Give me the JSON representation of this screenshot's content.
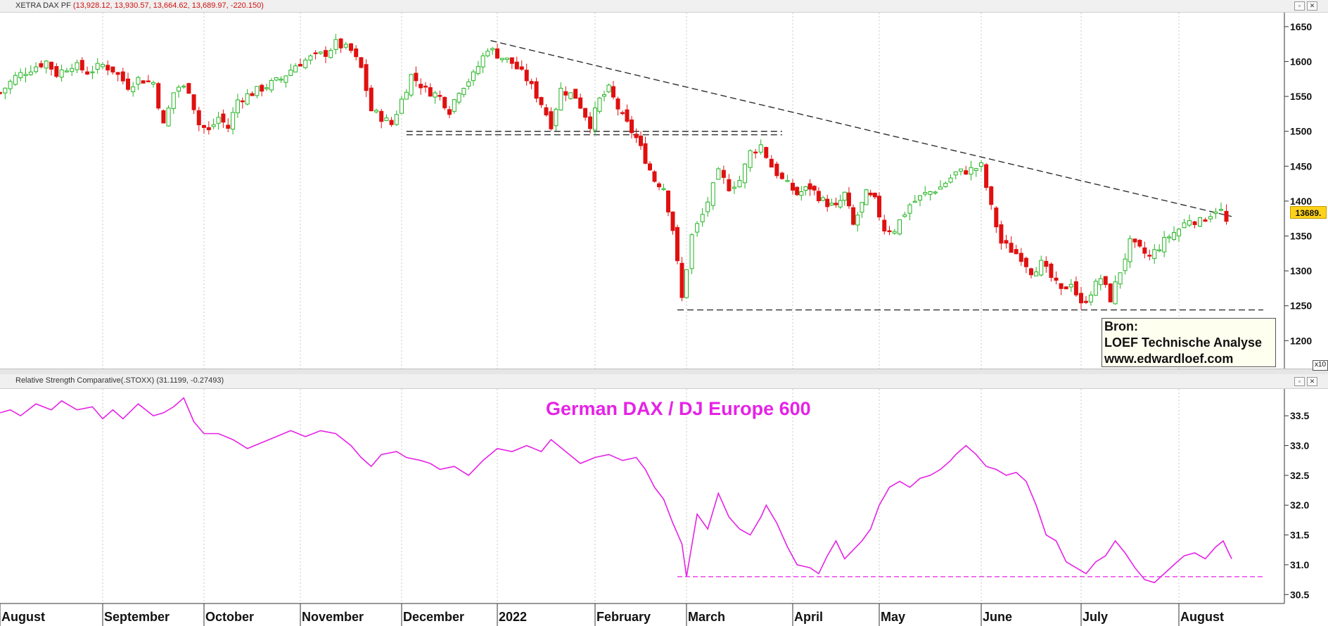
{
  "top_pane": {
    "title_name": "XETRA DAX PF",
    "title_values": "(13,928.12, 13,930.57, 13,664.62, 13,689.97, -220.150)",
    "last_price_label": "13689.",
    "scale_marker": "x10"
  },
  "bottom_pane": {
    "title_name": "Relative Strength Comparative(.STOXX)",
    "title_values": "(31.1199, -0.27493)",
    "chart_title": "German DAX / DJ Europe 600"
  },
  "source_box": {
    "line1": "Bron:",
    "line2": "LOEF Technische Analyse",
    "line3": "www.edwardloef.com"
  },
  "window_buttons": {
    "restore": "▫",
    "close": "✕"
  },
  "colors": {
    "up_candle": "#22b422",
    "down_candle": "#e01010",
    "rs_line": "#e622e6",
    "grid": "#c8c8c8",
    "last_price_bg": "#ffd21a"
  },
  "chart_data": [
    {
      "type": "candlestick",
      "title": "XETRA DAX PF",
      "x_months": [
        "August",
        "September",
        "October",
        "November",
        "December",
        "2022",
        "February",
        "March",
        "April",
        "May",
        "June",
        "July",
        "August"
      ],
      "y_ticks": [
        1200,
        1250,
        1300,
        1350,
        1400,
        1450,
        1500,
        1550,
        1600,
        1650
      ],
      "y_multiplier": "x10",
      "ylim": [
        1160,
        1670
      ],
      "grid": true,
      "trend_lines": [
        {
          "style": "dashed",
          "from": {
            "month_index": 4.05,
            "value": 1500
          },
          "to": {
            "month_index": 7.9,
            "value": 1500
          }
        },
        {
          "style": "dashed",
          "from": {
            "month_index": 4.05,
            "value": 1495
          },
          "to": {
            "month_index": 7.9,
            "value": 1495
          }
        },
        {
          "style": "dashed",
          "from": {
            "month_index": 4.93,
            "value": 1630
          },
          "to": {
            "month_index": 12.5,
            "value": 1378
          }
        },
        {
          "style": "dashed",
          "from": {
            "month_index": 6.9,
            "value": 1244
          },
          "to": {
            "month_index": 12.8,
            "value": 1244
          }
        }
      ],
      "close_path": [
        [
          0,
          1555
        ],
        [
          0.15,
          1578
        ],
        [
          0.3,
          1590
        ],
        [
          0.45,
          1600
        ],
        [
          0.55,
          1582
        ],
        [
          0.7,
          1596
        ],
        [
          0.85,
          1585
        ],
        [
          1.0,
          1595
        ],
        [
          1.1,
          1588
        ],
        [
          1.25,
          1565
        ],
        [
          1.35,
          1575
        ],
        [
          1.5,
          1570
        ],
        [
          1.6,
          1508
        ],
        [
          1.72,
          1565
        ],
        [
          1.85,
          1560
        ],
        [
          1.95,
          1510
        ],
        [
          2.05,
          1500
        ],
        [
          2.15,
          1520
        ],
        [
          2.25,
          1505
        ],
        [
          2.35,
          1545
        ],
        [
          2.5,
          1555
        ],
        [
          2.65,
          1565
        ],
        [
          2.8,
          1575
        ],
        [
          2.95,
          1595
        ],
        [
          3.1,
          1605
        ],
        [
          3.25,
          1612
        ],
        [
          3.35,
          1626
        ],
        [
          3.5,
          1615
        ],
        [
          3.6,
          1590
        ],
        [
          3.7,
          1530
        ],
        [
          3.8,
          1520
        ],
        [
          3.9,
          1510
        ],
        [
          4.0,
          1545
        ],
        [
          4.1,
          1580
        ],
        [
          4.25,
          1560
        ],
        [
          4.4,
          1550
        ],
        [
          4.5,
          1530
        ],
        [
          4.6,
          1560
        ],
        [
          4.75,
          1580
        ],
        [
          4.9,
          1620
        ],
        [
          5.0,
          1610
        ],
        [
          5.15,
          1598
        ],
        [
          5.3,
          1575
        ],
        [
          5.45,
          1540
        ],
        [
          5.55,
          1510
        ],
        [
          5.65,
          1560
        ],
        [
          5.8,
          1550
        ],
        [
          5.95,
          1510
        ],
        [
          6.05,
          1545
        ],
        [
          6.15,
          1560
        ],
        [
          6.3,
          1520
        ],
        [
          6.45,
          1490
        ],
        [
          6.55,
          1460
        ],
        [
          6.65,
          1430
        ],
        [
          6.75,
          1420
        ],
        [
          6.85,
          1360
        ],
        [
          6.95,
          1260
        ],
        [
          7.05,
          1350
        ],
        [
          7.15,
          1380
        ],
        [
          7.3,
          1440
        ],
        [
          7.4,
          1420
        ],
        [
          7.5,
          1430
        ],
        [
          7.6,
          1470
        ],
        [
          7.7,
          1480
        ],
        [
          7.8,
          1450
        ],
        [
          7.9,
          1430
        ],
        [
          8.05,
          1410
        ],
        [
          8.2,
          1420
        ],
        [
          8.35,
          1400
        ],
        [
          8.5,
          1390
        ],
        [
          8.6,
          1410
        ],
        [
          8.7,
          1365
        ],
        [
          8.85,
          1410
        ],
        [
          8.95,
          1400
        ],
        [
          9.05,
          1360
        ],
        [
          9.15,
          1360
        ],
        [
          9.3,
          1395
        ],
        [
          9.45,
          1410
        ],
        [
          9.6,
          1420
        ],
        [
          9.75,
          1440
        ],
        [
          9.9,
          1445
        ],
        [
          10.0,
          1450
        ],
        [
          10.1,
          1390
        ],
        [
          10.2,
          1340
        ],
        [
          10.3,
          1330
        ],
        [
          10.4,
          1320
        ],
        [
          10.5,
          1300
        ],
        [
          10.6,
          1310
        ],
        [
          10.7,
          1290
        ],
        [
          10.8,
          1270
        ],
        [
          10.9,
          1285
        ],
        [
          11.0,
          1250
        ],
        [
          11.1,
          1270
        ],
        [
          11.2,
          1290
        ],
        [
          11.3,
          1260
        ],
        [
          11.4,
          1300
        ],
        [
          11.5,
          1340
        ],
        [
          11.6,
          1330
        ],
        [
          11.7,
          1320
        ],
        [
          11.8,
          1335
        ],
        [
          11.9,
          1350
        ],
        [
          12.0,
          1360
        ],
        [
          12.1,
          1375
        ],
        [
          12.2,
          1370
        ],
        [
          12.3,
          1382
        ],
        [
          12.38,
          1392
        ],
        [
          12.45,
          1369
        ]
      ]
    },
    {
      "type": "line",
      "title": "German DAX / DJ Europe 600",
      "series": [
        {
          "name": "Relative Strength Comparative(.STOXX)"
        }
      ],
      "y_ticks": [
        30.5,
        31.0,
        31.5,
        32.0,
        32.5,
        33.0,
        33.5
      ],
      "ylim": [
        30.35,
        33.95
      ],
      "grid": true,
      "support_line": {
        "style": "dashed",
        "value": 30.8,
        "from_month_index": 6.9,
        "to_month_index": 12.8
      },
      "points": [
        [
          0,
          33.55
        ],
        [
          0.1,
          33.6
        ],
        [
          0.2,
          33.5
        ],
        [
          0.35,
          33.7
        ],
        [
          0.5,
          33.6
        ],
        [
          0.6,
          33.75
        ],
        [
          0.75,
          33.6
        ],
        [
          0.9,
          33.65
        ],
        [
          1.0,
          33.45
        ],
        [
          1.1,
          33.6
        ],
        [
          1.2,
          33.45
        ],
        [
          1.35,
          33.7
        ],
        [
          1.5,
          33.5
        ],
        [
          1.6,
          33.55
        ],
        [
          1.7,
          33.65
        ],
        [
          1.8,
          33.8
        ],
        [
          1.9,
          33.4
        ],
        [
          2.0,
          33.2
        ],
        [
          2.15,
          33.2
        ],
        [
          2.3,
          33.1
        ],
        [
          2.45,
          32.95
        ],
        [
          2.6,
          33.05
        ],
        [
          2.75,
          33.15
        ],
        [
          2.9,
          33.25
        ],
        [
          3.05,
          33.15
        ],
        [
          3.2,
          33.25
        ],
        [
          3.35,
          33.2
        ],
        [
          3.5,
          33.0
        ],
        [
          3.6,
          32.8
        ],
        [
          3.7,
          32.65
        ],
        [
          3.8,
          32.85
        ],
        [
          3.95,
          32.9
        ],
        [
          4.05,
          32.8
        ],
        [
          4.2,
          32.75
        ],
        [
          4.3,
          32.7
        ],
        [
          4.4,
          32.6
        ],
        [
          4.55,
          32.65
        ],
        [
          4.7,
          32.5
        ],
        [
          4.85,
          32.75
        ],
        [
          5.0,
          32.95
        ],
        [
          5.15,
          32.9
        ],
        [
          5.3,
          33.0
        ],
        [
          5.45,
          32.9
        ],
        [
          5.55,
          33.1
        ],
        [
          5.7,
          32.9
        ],
        [
          5.85,
          32.7
        ],
        [
          6.0,
          32.8
        ],
        [
          6.15,
          32.85
        ],
        [
          6.3,
          32.75
        ],
        [
          6.45,
          32.8
        ],
        [
          6.55,
          32.6
        ],
        [
          6.65,
          32.3
        ],
        [
          6.75,
          32.1
        ],
        [
          6.85,
          31.7
        ],
        [
          6.95,
          31.35
        ],
        [
          7.0,
          30.8
        ],
        [
          7.1,
          31.85
        ],
        [
          7.2,
          31.6
        ],
        [
          7.3,
          32.2
        ],
        [
          7.4,
          31.8
        ],
        [
          7.5,
          31.6
        ],
        [
          7.6,
          31.5
        ],
        [
          7.7,
          31.8
        ],
        [
          7.75,
          32.0
        ],
        [
          7.85,
          31.7
        ],
        [
          7.95,
          31.3
        ],
        [
          8.05,
          31.0
        ],
        [
          8.2,
          30.95
        ],
        [
          8.3,
          30.85
        ],
        [
          8.4,
          31.15
        ],
        [
          8.5,
          31.4
        ],
        [
          8.6,
          31.1
        ],
        [
          8.7,
          31.25
        ],
        [
          8.8,
          31.4
        ],
        [
          8.9,
          31.6
        ],
        [
          9.0,
          32.0
        ],
        [
          9.1,
          32.3
        ],
        [
          9.2,
          32.4
        ],
        [
          9.3,
          32.3
        ],
        [
          9.4,
          32.45
        ],
        [
          9.5,
          32.5
        ],
        [
          9.6,
          32.6
        ],
        [
          9.7,
          32.75
        ],
        [
          9.75,
          32.85
        ],
        [
          9.85,
          33.0
        ],
        [
          9.95,
          32.85
        ],
        [
          10.05,
          32.65
        ],
        [
          10.15,
          32.6
        ],
        [
          10.25,
          32.5
        ],
        [
          10.35,
          32.55
        ],
        [
          10.45,
          32.4
        ],
        [
          10.55,
          32.0
        ],
        [
          10.65,
          31.5
        ],
        [
          10.75,
          31.4
        ],
        [
          10.85,
          31.05
        ],
        [
          10.95,
          30.95
        ],
        [
          11.05,
          30.85
        ],
        [
          11.15,
          31.05
        ],
        [
          11.25,
          31.15
        ],
        [
          11.35,
          31.4
        ],
        [
          11.45,
          31.2
        ],
        [
          11.55,
          30.95
        ],
        [
          11.65,
          30.75
        ],
        [
          11.75,
          30.7
        ],
        [
          11.85,
          30.85
        ],
        [
          11.95,
          31.0
        ],
        [
          12.05,
          31.15
        ],
        [
          12.15,
          31.2
        ],
        [
          12.25,
          31.1
        ],
        [
          12.35,
          31.3
        ],
        [
          12.42,
          31.4
        ],
        [
          12.5,
          31.1
        ]
      ]
    }
  ]
}
